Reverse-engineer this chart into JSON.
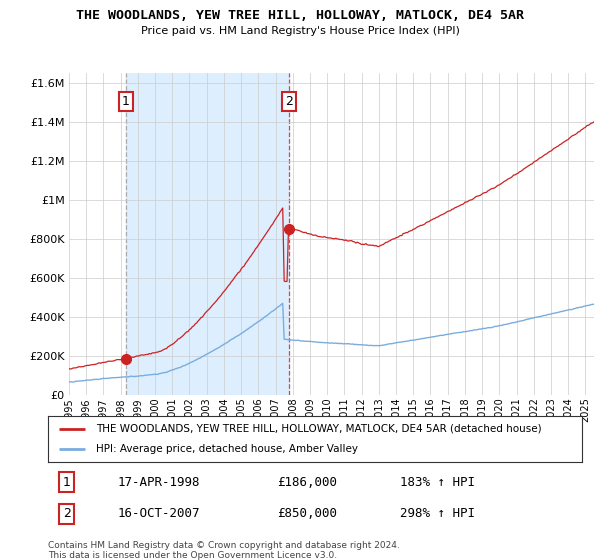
{
  "title": "THE WOODLANDS, YEW TREE HILL, HOLLOWAY, MATLOCK, DE4 5AR",
  "subtitle": "Price paid vs. HM Land Registry's House Price Index (HPI)",
  "legend_line1": "THE WOODLANDS, YEW TREE HILL, HOLLOWAY, MATLOCK, DE4 5AR (detached house)",
  "legend_line2": "HPI: Average price, detached house, Amber Valley",
  "annotation1_date": "17-APR-1998",
  "annotation1_price": "£186,000",
  "annotation1_hpi": "183% ↑ HPI",
  "annotation2_date": "16-OCT-2007",
  "annotation2_price": "£850,000",
  "annotation2_hpi": "298% ↑ HPI",
  "footer": "Contains HM Land Registry data © Crown copyright and database right 2024.\nThis data is licensed under the Open Government Licence v3.0.",
  "red_color": "#cc2222",
  "blue_color": "#7aadde",
  "shade_color": "#ddeeff",
  "background_color": "#ffffff",
  "ylim": [
    0,
    1650000
  ],
  "yticks": [
    0,
    200000,
    400000,
    600000,
    800000,
    1000000,
    1200000,
    1400000,
    1600000
  ],
  "xlim_start": 1995.0,
  "xlim_end": 2025.5,
  "sale1_x": 1998.29,
  "sale1_y": 186000,
  "sale2_x": 2007.79,
  "sale2_y": 850000,
  "vline1_x": 1998.29,
  "vline2_x": 2007.79
}
